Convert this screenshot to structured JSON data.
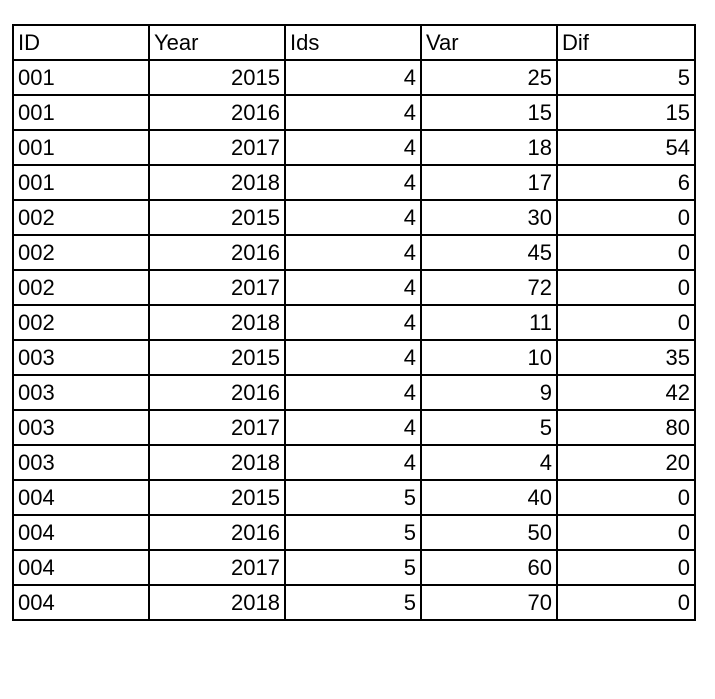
{
  "table": {
    "header": [
      "ID",
      "Year",
      "Ids",
      "Var",
      "Dif"
    ],
    "rows": [
      [
        "001",
        2015,
        4,
        25,
        5
      ],
      [
        "001",
        2016,
        4,
        15,
        15
      ],
      [
        "001",
        2017,
        4,
        18,
        54
      ],
      [
        "001",
        2018,
        4,
        17,
        6
      ],
      [
        "002",
        2015,
        4,
        30,
        0
      ],
      [
        "002",
        2016,
        4,
        45,
        0
      ],
      [
        "002",
        2017,
        4,
        72,
        0
      ],
      [
        "002",
        2018,
        4,
        11,
        0
      ],
      [
        "003",
        2015,
        4,
        10,
        35
      ],
      [
        "003",
        2016,
        4,
        9,
        42
      ],
      [
        "003",
        2017,
        4,
        5,
        80
      ],
      [
        "003",
        2018,
        4,
        4,
        20
      ],
      [
        "004",
        2015,
        5,
        40,
        0
      ],
      [
        "004",
        2016,
        5,
        50,
        0
      ],
      [
        "004",
        2017,
        5,
        60,
        0
      ],
      [
        "004",
        2018,
        5,
        70,
        0
      ]
    ]
  }
}
